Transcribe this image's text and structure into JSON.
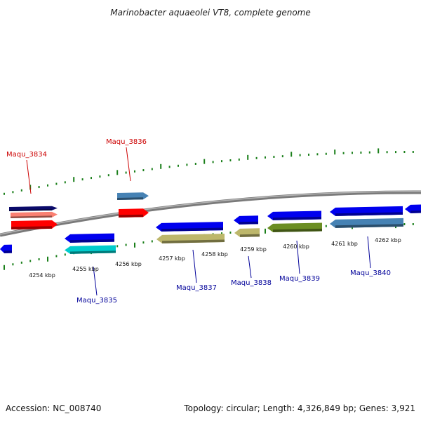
{
  "title": "Marinobacter aquaeolei VT8, complete genome",
  "footer": {
    "accession": "Accession: NC_008740",
    "summary": "Topology: circular; Length: 4,326,849 bp; Genes: 3,921"
  },
  "colors": {
    "backbone": "#808080",
    "tick": "#1a7f1a",
    "label_forward": "#cc0000",
    "label_reverse": "#000099"
  },
  "ticks": [
    "4254 kbp",
    "4255 kbp",
    "4256 kbp",
    "4257 kbp",
    "4258 kbp",
    "4259 kbp",
    "4260 kbp",
    "4261 kbp",
    "4262 kbp"
  ],
  "gene_labels": [
    "Maqu_3834",
    "Maqu_3835",
    "Maqu_3836",
    "Maqu_3837",
    "Maqu_3838",
    "Maqu_3839",
    "Maqu_3840"
  ],
  "genes": [
    {
      "strand": "+",
      "track": 1,
      "color": "#0a0a6a"
    },
    {
      "strand": "+",
      "track": 2,
      "color": "#fa8072"
    },
    {
      "strand": "+",
      "track": 3,
      "color": "#ff0000"
    },
    {
      "strand": "+",
      "track": 1,
      "color": "#4682b4"
    },
    {
      "strand": "+",
      "track": 3,
      "color": "#ff0000"
    },
    {
      "strand": "-",
      "track": 1,
      "color": "#0000ee"
    },
    {
      "strand": "-",
      "track": 1,
      "color": "#0000ee"
    },
    {
      "strand": "-",
      "track": 2,
      "color": "#00cccc"
    },
    {
      "strand": "-",
      "track": 1,
      "color": "#0000ee"
    },
    {
      "strand": "-",
      "track": 2,
      "color": "#bdb76b"
    },
    {
      "strand": "-",
      "track": 1,
      "color": "#0000ee"
    },
    {
      "strand": "-",
      "track": 2,
      "color": "#bdb76b"
    },
    {
      "strand": "-",
      "track": 1,
      "color": "#0000ee"
    },
    {
      "strand": "-",
      "track": 2,
      "color": "#6b8e23"
    },
    {
      "strand": "-",
      "track": 1,
      "color": "#0000ee"
    },
    {
      "strand": "-",
      "track": 2,
      "color": "#4682b4"
    },
    {
      "strand": "-",
      "track": 1,
      "color": "#0000ee"
    }
  ]
}
